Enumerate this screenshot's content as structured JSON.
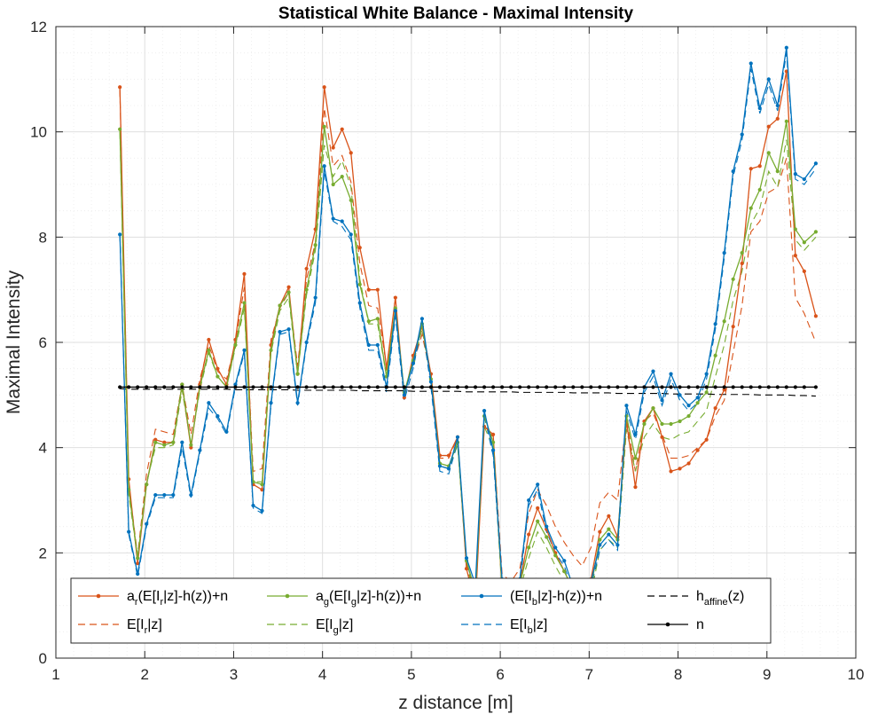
{
  "chart_data": {
    "type": "line",
    "title": "Statistical White Balance - Maximal Intensity",
    "xlabel": "z distance [m]",
    "ylabel": "Maximal Intensity",
    "xlim": [
      1,
      10
    ],
    "ylim": [
      0,
      12
    ],
    "xticks": [
      "1",
      "2",
      "3",
      "4",
      "5",
      "6",
      "7",
      "8",
      "9",
      "10"
    ],
    "yticks": [
      "0",
      "2",
      "4",
      "6",
      "8",
      "10",
      "12"
    ],
    "grid": true,
    "minor_grid": true,
    "legend_placement": "bottom, 4 columns",
    "x": [
      1.72,
      1.82,
      1.92,
      2.02,
      2.12,
      2.22,
      2.32,
      2.42,
      2.52,
      2.62,
      2.72,
      2.82,
      2.92,
      3.02,
      3.12,
      3.22,
      3.32,
      3.42,
      3.52,
      3.62,
      3.72,
      3.82,
      3.92,
      4.02,
      4.12,
      4.22,
      4.32,
      4.42,
      4.52,
      4.62,
      4.72,
      4.82,
      4.92,
      5.02,
      5.12,
      5.22,
      5.32,
      5.42,
      5.52,
      5.62,
      5.72,
      5.82,
      5.92,
      6.02,
      6.12,
      6.22,
      6.32,
      6.42,
      6.52,
      6.62,
      6.72,
      6.82,
      6.92,
      7.02,
      7.12,
      7.22,
      7.32,
      7.42,
      7.52,
      7.62,
      7.72,
      7.82,
      7.92,
      8.02,
      8.12,
      8.22,
      8.32,
      8.42,
      8.52,
      8.62,
      8.72,
      8.82,
      8.92,
      9.02,
      9.12,
      9.22,
      9.32,
      9.42,
      9.55
    ],
    "series": [
      {
        "name": "a_r(E[I_r|z]-h(z))+n",
        "color": "#d95319",
        "style": "solid-dot",
        "values": [
          10.85,
          3.4,
          1.8,
          3.3,
          4.15,
          4.1,
          4.1,
          5.2,
          4.0,
          5.2,
          6.05,
          5.5,
          5.2,
          6.05,
          7.3,
          3.3,
          3.2,
          5.95,
          6.7,
          7.05,
          5.4,
          7.4,
          8.15,
          10.85,
          9.7,
          10.05,
          9.6,
          7.8,
          7.0,
          7.0,
          5.5,
          6.85,
          4.95,
          5.75,
          6.3,
          5.4,
          3.85,
          3.85,
          4.2,
          1.7,
          1.0,
          4.4,
          4.25,
          1.3,
          1.1,
          1.4,
          2.35,
          2.85,
          2.45,
          2.0,
          1.65,
          1.3,
          1.1,
          1.5,
          2.4,
          2.7,
          2.3,
          4.5,
          3.25,
          4.5,
          4.75,
          4.2,
          3.55,
          3.6,
          3.7,
          3.95,
          4.15,
          4.75,
          5.1,
          6.3,
          7.5,
          9.3,
          9.35,
          10.1,
          10.25,
          11.15,
          7.65,
          7.35,
          6.5
        ]
      },
      {
        "name": "a_g(E[I_g|z]-h(z))+n",
        "color": "#77ac30",
        "style": "solid-dot",
        "values": [
          10.05,
          3.2,
          1.9,
          3.3,
          4.1,
          4.05,
          4.1,
          5.2,
          4.05,
          5.15,
          5.85,
          5.35,
          5.15,
          5.95,
          6.75,
          3.35,
          3.3,
          5.85,
          6.7,
          6.95,
          5.4,
          7.0,
          7.85,
          10.1,
          9.0,
          9.15,
          8.7,
          7.1,
          6.4,
          6.45,
          5.35,
          6.65,
          5.05,
          5.65,
          6.35,
          5.3,
          3.7,
          3.65,
          4.1,
          1.85,
          1.25,
          4.6,
          4.1,
          1.35,
          1.3,
          1.4,
          2.1,
          2.6,
          2.3,
          1.95,
          1.65,
          1.3,
          1.05,
          1.35,
          2.25,
          2.45,
          2.25,
          4.6,
          3.8,
          4.45,
          4.75,
          4.45,
          4.45,
          4.5,
          4.6,
          4.85,
          5.05,
          5.75,
          6.4,
          7.2,
          7.7,
          8.55,
          8.9,
          9.6,
          9.25,
          10.2,
          8.15,
          7.9,
          8.1
        ]
      },
      {
        "name": "(E[I_b|z]-h(z))+n",
        "color": "#0072bd",
        "style": "solid-dot",
        "values": [
          8.05,
          2.4,
          1.6,
          2.55,
          3.1,
          3.1,
          3.1,
          4.1,
          3.1,
          3.95,
          4.85,
          4.6,
          4.3,
          5.2,
          5.85,
          2.9,
          2.8,
          4.85,
          6.2,
          6.25,
          4.85,
          6.0,
          6.85,
          9.35,
          8.35,
          8.3,
          8.05,
          6.75,
          5.95,
          5.95,
          5.15,
          6.6,
          5.0,
          5.6,
          6.45,
          5.25,
          3.65,
          3.6,
          4.2,
          1.9,
          1.4,
          4.7,
          3.95,
          1.5,
          1.45,
          1.5,
          3.0,
          3.3,
          2.5,
          2.1,
          1.85,
          1.35,
          1.1,
          1.45,
          2.15,
          2.35,
          2.15,
          4.8,
          4.25,
          5.15,
          5.45,
          4.9,
          5.4,
          5.0,
          4.8,
          4.95,
          5.4,
          6.35,
          7.7,
          9.25,
          9.95,
          11.3,
          10.45,
          11.0,
          10.5,
          11.6,
          9.2,
          9.1,
          9.4
        ]
      },
      {
        "name": "h_affine(z)",
        "color": "#000000",
        "style": "dashed",
        "values": [
          5.12,
          5.11,
          5.11,
          5.11,
          5.11,
          5.11,
          5.11,
          5.11,
          5.11,
          5.11,
          5.11,
          5.11,
          5.11,
          5.1,
          5.1,
          5.1,
          5.1,
          5.1,
          5.1,
          5.1,
          5.09,
          5.09,
          5.09,
          5.09,
          5.09,
          5.09,
          5.09,
          5.08,
          5.08,
          5.08,
          5.08,
          5.08,
          5.08,
          5.07,
          5.07,
          5.07,
          5.07,
          5.07,
          5.07,
          5.06,
          5.06,
          5.06,
          5.06,
          5.06,
          5.06,
          5.05,
          5.05,
          5.05,
          5.05,
          5.05,
          5.05,
          5.04,
          5.04,
          5.04,
          5.04,
          5.04,
          5.03,
          5.03,
          5.03,
          5.03,
          5.03,
          5.03,
          5.02,
          5.02,
          5.02,
          5.02,
          5.02,
          5.01,
          5.01,
          5.01,
          5.01,
          5.01,
          5.0,
          5.0,
          5.0,
          5.0,
          4.99,
          4.99,
          4.98
        ]
      },
      {
        "name": "E[I_r|z]",
        "color": "#d95319",
        "style": "dashed",
        "values": [
          10.8,
          3.3,
          1.95,
          3.5,
          4.35,
          4.3,
          4.25,
          5.2,
          4.25,
          5.3,
          5.95,
          5.45,
          5.3,
          6.0,
          7.05,
          3.55,
          3.6,
          6.05,
          6.65,
          6.95,
          5.55,
          7.2,
          7.9,
          10.45,
          9.35,
          9.55,
          9.05,
          7.5,
          6.7,
          6.65,
          5.55,
          6.6,
          5.05,
          5.6,
          6.15,
          5.35,
          3.8,
          3.8,
          4.2,
          1.8,
          1.2,
          4.4,
          4.2,
          1.6,
          1.45,
          1.7,
          2.75,
          3.2,
          2.9,
          2.5,
          2.2,
          1.95,
          1.75,
          2.1,
          2.95,
          3.15,
          3.0,
          4.55,
          3.55,
          4.5,
          4.65,
          4.25,
          3.8,
          3.8,
          3.85,
          4.0,
          4.15,
          4.6,
          4.9,
          5.8,
          6.7,
          8.1,
          8.3,
          8.85,
          8.95,
          9.5,
          6.85,
          6.55,
          6.0
        ]
      },
      {
        "name": "E[I_g|z]",
        "color": "#77ac30",
        "style": "dashed",
        "values": [
          10.0,
          3.1,
          1.9,
          3.35,
          4.0,
          4.0,
          4.05,
          5.1,
          4.05,
          5.1,
          5.8,
          5.35,
          5.15,
          5.9,
          6.65,
          3.35,
          3.35,
          5.8,
          6.6,
          6.85,
          5.4,
          6.9,
          7.75,
          9.75,
          9.15,
          9.45,
          8.95,
          7.2,
          6.35,
          6.35,
          5.35,
          6.55,
          5.05,
          5.6,
          6.25,
          5.3,
          3.65,
          3.6,
          4.05,
          1.75,
          1.15,
          4.4,
          4.0,
          1.25,
          1.2,
          1.3,
          1.9,
          2.4,
          2.1,
          1.75,
          1.45,
          1.1,
          0.9,
          1.2,
          2.05,
          2.25,
          2.1,
          4.35,
          3.55,
          4.2,
          4.45,
          4.2,
          4.15,
          4.25,
          4.3,
          4.5,
          4.7,
          5.35,
          5.95,
          6.8,
          7.35,
          8.25,
          8.55,
          9.25,
          8.95,
          9.85,
          7.95,
          7.75,
          8.0
        ]
      },
      {
        "name": "E[I_b|z]",
        "color": "#0072bd",
        "style": "dashed",
        "values": [
          8.05,
          2.35,
          1.55,
          2.5,
          3.05,
          3.05,
          3.05,
          4.0,
          3.05,
          3.9,
          4.75,
          4.55,
          4.25,
          5.15,
          5.8,
          2.85,
          2.75,
          4.8,
          6.15,
          6.2,
          4.8,
          5.95,
          6.75,
          9.25,
          8.3,
          8.2,
          7.95,
          6.65,
          5.85,
          5.85,
          5.05,
          6.5,
          4.9,
          5.5,
          6.35,
          5.15,
          3.55,
          3.5,
          4.1,
          1.8,
          1.3,
          4.6,
          3.85,
          1.4,
          1.35,
          1.4,
          2.9,
          3.2,
          2.4,
          2.0,
          1.75,
          1.25,
          1.0,
          1.35,
          2.05,
          2.25,
          2.05,
          4.7,
          4.15,
          5.05,
          5.35,
          4.8,
          5.3,
          4.9,
          4.7,
          4.85,
          5.3,
          6.25,
          7.6,
          9.15,
          9.85,
          11.2,
          10.35,
          10.9,
          10.4,
          11.5,
          9.1,
          9.0,
          9.3
        ]
      },
      {
        "name": "n",
        "color": "#000000",
        "style": "solid-dot",
        "values": [
          5.15,
          5.15,
          5.15,
          5.15,
          5.15,
          5.15,
          5.15,
          5.15,
          5.15,
          5.15,
          5.15,
          5.15,
          5.15,
          5.15,
          5.15,
          5.15,
          5.15,
          5.15,
          5.15,
          5.15,
          5.15,
          5.15,
          5.15,
          5.15,
          5.15,
          5.15,
          5.15,
          5.15,
          5.15,
          5.15,
          5.15,
          5.15,
          5.15,
          5.15,
          5.15,
          5.15,
          5.15,
          5.15,
          5.15,
          5.15,
          5.15,
          5.15,
          5.15,
          5.15,
          5.15,
          5.15,
          5.15,
          5.15,
          5.15,
          5.15,
          5.15,
          5.15,
          5.15,
          5.15,
          5.15,
          5.15,
          5.15,
          5.15,
          5.15,
          5.15,
          5.15,
          5.15,
          5.15,
          5.15,
          5.15,
          5.15,
          5.15,
          5.15,
          5.15,
          5.15,
          5.15,
          5.15,
          5.15,
          5.15,
          5.15,
          5.15,
          5.15,
          5.15,
          5.15
        ]
      }
    ],
    "legend": [
      {
        "series": 0,
        "main": "a",
        "sub1": "r",
        "mid": "(E[I",
        "sub2": "r",
        "end": "|z]-h(z))+n",
        "color": "#d95319",
        "style": "solid-dot"
      },
      {
        "series": 1,
        "main": "a",
        "sub1": "g",
        "mid": "(E[I",
        "sub2": "g",
        "end": "|z]-h(z))+n",
        "color": "#77ac30",
        "style": "solid-dot"
      },
      {
        "series": 2,
        "main": "",
        "sub1": "",
        "mid": "(E[I",
        "sub2": "b",
        "end": "|z]-h(z))+n",
        "color": "#0072bd",
        "style": "solid-dot"
      },
      {
        "series": 3,
        "main": "h",
        "sub1": "affine",
        "mid": "(z)",
        "sub2": "",
        "end": "",
        "color": "#000000",
        "style": "dashed"
      },
      {
        "series": 4,
        "main": "E[I",
        "sub1": "r",
        "mid": "|z]",
        "sub2": "",
        "end": "",
        "color": "#d95319",
        "style": "dashed"
      },
      {
        "series": 5,
        "main": "E[I",
        "sub1": "g",
        "mid": "|z]",
        "sub2": "",
        "end": "",
        "color": "#77ac30",
        "style": "dashed"
      },
      {
        "series": 6,
        "main": "E[I",
        "sub1": "b",
        "mid": "|z]",
        "sub2": "",
        "end": "",
        "color": "#0072bd",
        "style": "dashed"
      },
      {
        "series": 7,
        "main": "n",
        "sub1": "",
        "mid": "",
        "sub2": "",
        "end": "",
        "color": "#000000",
        "style": "solid-dot"
      }
    ]
  }
}
